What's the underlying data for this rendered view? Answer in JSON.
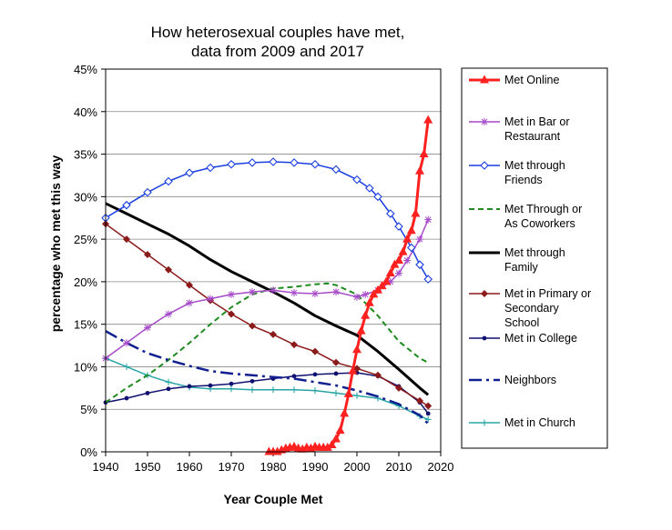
{
  "chart_data": {
    "type": "line",
    "title": "How heterosexual couples have met,",
    "subtitle": "data from 2009 and 2017",
    "xlabel": "Year Couple Met",
    "ylabel": "percentage who met this way",
    "xlim": [
      1940,
      2020
    ],
    "ylim": [
      0,
      45
    ],
    "x_ticks": [
      "1940",
      "1950",
      "1960",
      "1970",
      "1980",
      "1990",
      "2000",
      "2010",
      "2020"
    ],
    "y_ticks": [
      "0%",
      "5%",
      "10%",
      "15%",
      "20%",
      "25%",
      "30%",
      "35%",
      "40%",
      "45%"
    ],
    "grid": "horizontal",
    "legend_position": "right",
    "series": [
      {
        "name": "Met Online",
        "legend_lines": [
          "Met Online"
        ],
        "color": "#ff2020",
        "style": "solid",
        "width": 3,
        "marker": "triangle",
        "x": [
          1979,
          1980,
          1981,
          1982,
          1983,
          1984,
          1985,
          1986,
          1987,
          1988,
          1989,
          1990,
          1991,
          1992,
          1993,
          1994,
          1995,
          1996,
          1997,
          1998,
          1999,
          2000,
          2001,
          2002,
          2003,
          2004,
          2005,
          2006,
          2007,
          2008,
          2009,
          2010,
          2011,
          2012,
          2013,
          2014,
          2015,
          2016,
          2017
        ],
        "y": [
          0,
          0,
          0,
          0.2,
          0.4,
          0.5,
          0.6,
          0.4,
          0.3,
          0.5,
          0.4,
          0.6,
          0.5,
          0.5,
          0.5,
          0.8,
          1.5,
          2.5,
          4.5,
          6.8,
          9.5,
          12,
          14.2,
          16,
          17.5,
          18.5,
          19,
          19.5,
          20,
          21,
          22,
          22.5,
          23.5,
          25,
          26,
          28,
          33,
          35,
          39
        ]
      },
      {
        "name": "Met in Bar or Restaurant",
        "legend_lines": [
          "Met in Bar or",
          "Restaurant"
        ],
        "color": "#a64ac9",
        "style": "solid",
        "width": 1.5,
        "marker": "asterisk",
        "x": [
          1940,
          1945,
          1950,
          1955,
          1960,
          1965,
          1970,
          1975,
          1980,
          1985,
          1990,
          1995,
          2000,
          2002,
          2005,
          2008,
          2010,
          2012,
          2015,
          2017
        ],
        "y": [
          11,
          12.8,
          14.6,
          16.2,
          17.5,
          18.0,
          18.5,
          18.8,
          19.0,
          18.7,
          18.6,
          18.8,
          18.2,
          18.5,
          19.0,
          20.0,
          21.0,
          22.5,
          25.0,
          27.3
        ]
      },
      {
        "name": "Met through Friends",
        "legend_lines": [
          "Met through",
          "Friends"
        ],
        "color": "#1a3fe0",
        "style": "solid",
        "width": 1.5,
        "marker": "diamond-open",
        "x": [
          1940,
          1945,
          1950,
          1955,
          1960,
          1965,
          1970,
          1975,
          1980,
          1985,
          1990,
          1995,
          2000,
          2003,
          2005,
          2008,
          2010,
          2013,
          2015,
          2017
        ],
        "y": [
          27.5,
          29.0,
          30.5,
          31.8,
          32.8,
          33.4,
          33.8,
          34.0,
          34.1,
          34.0,
          33.8,
          33.2,
          32.0,
          31.0,
          30.0,
          28.0,
          26.5,
          24.0,
          22.0,
          20.3
        ]
      },
      {
        "name": "Met Through or As Coworkers",
        "legend_lines": [
          "Met Through or",
          "As Coworkers"
        ],
        "color": "#1f8a1f",
        "style": "dashed",
        "width": 2,
        "marker": "none",
        "x": [
          1940,
          1945,
          1950,
          1955,
          1960,
          1965,
          1970,
          1975,
          1980,
          1985,
          1990,
          1993,
          1995,
          2000,
          2005,
          2010,
          2015,
          2017
        ],
        "y": [
          5.8,
          7.5,
          9.0,
          10.8,
          12.8,
          15.0,
          17.0,
          18.5,
          19.2,
          19.4,
          19.7,
          19.8,
          19.6,
          18.5,
          16.0,
          13.0,
          11.0,
          10.5
        ]
      },
      {
        "name": "Met through Family",
        "legend_lines": [
          "Met through",
          "Family"
        ],
        "color": "#000000",
        "style": "solid",
        "width": 3,
        "marker": "none",
        "x": [
          1940,
          1945,
          1950,
          1955,
          1960,
          1965,
          1970,
          1975,
          1980,
          1985,
          1990,
          1995,
          2000,
          2005,
          2010,
          2015,
          2017
        ],
        "y": [
          29.2,
          28.0,
          26.8,
          25.6,
          24.2,
          22.6,
          21.2,
          20.0,
          18.8,
          17.5,
          16.0,
          14.8,
          13.7,
          11.8,
          9.7,
          7.5,
          6.7
        ]
      },
      {
        "name": "Met in Primary or Secondary School",
        "legend_lines": [
          "Met in Primary or",
          "Secondary",
          "School"
        ],
        "color": "#8b1a1a",
        "style": "solid",
        "width": 1.5,
        "marker": "diamond-filled",
        "x": [
          1940,
          1945,
          1950,
          1955,
          1960,
          1965,
          1970,
          1975,
          1980,
          1985,
          1990,
          1995,
          2000,
          2005,
          2010,
          2015,
          2017
        ],
        "y": [
          26.8,
          25.0,
          23.2,
          21.4,
          19.6,
          17.8,
          16.2,
          14.8,
          13.8,
          12.6,
          11.8,
          10.5,
          9.8,
          9.0,
          7.5,
          6.0,
          5.4
        ]
      },
      {
        "name": "Met in College",
        "legend_lines": [
          "Met in College"
        ],
        "color": "#101070",
        "style": "solid",
        "width": 1.5,
        "marker": "dot",
        "x": [
          1940,
          1945,
          1950,
          1955,
          1960,
          1965,
          1970,
          1975,
          1980,
          1985,
          1990,
          1995,
          2000,
          2005,
          2010,
          2015,
          2017
        ],
        "y": [
          5.8,
          6.3,
          6.9,
          7.4,
          7.7,
          7.8,
          8.0,
          8.3,
          8.6,
          8.9,
          9.1,
          9.2,
          9.3,
          8.9,
          7.7,
          5.8,
          4.5
        ]
      },
      {
        "name": "Neighbors",
        "legend_lines": [
          "Neighbors"
        ],
        "color": "#102090",
        "style": "dashdot",
        "width": 2.5,
        "marker": "none",
        "x": [
          1940,
          1945,
          1950,
          1955,
          1960,
          1965,
          1970,
          1975,
          1980,
          1985,
          1990,
          1995,
          2000,
          2005,
          2010,
          2015,
          2017
        ],
        "y": [
          14.2,
          12.8,
          11.6,
          10.8,
          10.1,
          9.5,
          9.2,
          9.0,
          8.8,
          8.6,
          8.2,
          7.8,
          7.2,
          6.5,
          5.6,
          4.3,
          3.3
        ]
      },
      {
        "name": "Met in Church",
        "legend_lines": [
          "Met in Church"
        ],
        "color": "#2aa5a5",
        "style": "solid",
        "width": 1.5,
        "marker": "plus",
        "x": [
          1940,
          1945,
          1950,
          1955,
          1960,
          1965,
          1970,
          1975,
          1980,
          1985,
          1990,
          1995,
          2000,
          2005,
          2010,
          2015,
          2017
        ],
        "y": [
          11.0,
          10.0,
          9.0,
          8.2,
          7.6,
          7.4,
          7.4,
          7.3,
          7.3,
          7.3,
          7.2,
          6.9,
          6.6,
          6.3,
          5.4,
          4.2,
          3.8
        ]
      }
    ]
  }
}
